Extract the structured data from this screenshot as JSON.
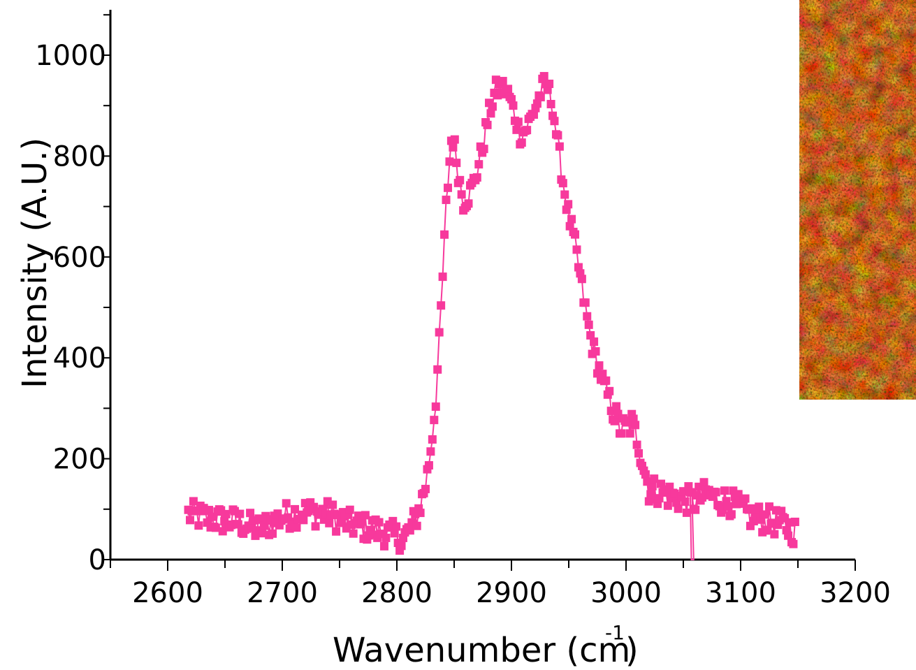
{
  "chart_data": {
    "type": "scatter",
    "title": "",
    "xlabel": "Wavenumber (cm",
    "xlabel_superscript": "-1",
    "xlabel_close": ")",
    "ylabel": "Intensity (A.U.)",
    "xlim": [
      2550,
      3200
    ],
    "ylim": [
      0,
      1090
    ],
    "x_ticks": [
      2600,
      2700,
      2800,
      2900,
      3000,
      3100,
      3200
    ],
    "x_tick_labels": [
      "2600",
      "2700",
      "2800",
      "2900",
      "3000",
      "3100",
      "3200"
    ],
    "y_ticks": [
      0,
      200,
      400,
      600,
      800,
      1000
    ],
    "y_tick_labels": [
      "0",
      "200",
      "400",
      "600",
      "800",
      "1000"
    ],
    "grid": false,
    "legend": "none",
    "series": [
      {
        "color": "#f7399c",
        "marker": "square",
        "line": true,
        "anchors": [
          [
            2618,
            90
          ],
          [
            2640,
            80
          ],
          [
            2660,
            75
          ],
          [
            2680,
            60
          ],
          [
            2700,
            85
          ],
          [
            2720,
            95
          ],
          [
            2740,
            90
          ],
          [
            2760,
            70
          ],
          [
            2780,
            60
          ],
          [
            2795,
            50
          ],
          [
            2805,
            40
          ],
          [
            2812,
            60
          ],
          [
            2818,
            90
          ],
          [
            2822,
            120
          ],
          [
            2826,
            160
          ],
          [
            2830,
            230
          ],
          [
            2834,
            320
          ],
          [
            2837,
            430
          ],
          [
            2840,
            560
          ],
          [
            2843,
            700
          ],
          [
            2846,
            790
          ],
          [
            2848,
            845
          ],
          [
            2851,
            810
          ],
          [
            2854,
            760
          ],
          [
            2858,
            710
          ],
          [
            2862,
            720
          ],
          [
            2866,
            740
          ],
          [
            2870,
            770
          ],
          [
            2875,
            820
          ],
          [
            2880,
            880
          ],
          [
            2886,
            930
          ],
          [
            2893,
            935
          ],
          [
            2898,
            920
          ],
          [
            2903,
            880
          ],
          [
            2908,
            840
          ],
          [
            2913,
            855
          ],
          [
            2918,
            880
          ],
          [
            2923,
            910
          ],
          [
            2928,
            940
          ],
          [
            2932,
            935
          ],
          [
            2936,
            900
          ],
          [
            2940,
            830
          ],
          [
            2945,
            750
          ],
          [
            2950,
            680
          ],
          [
            2955,
            630
          ],
          [
            2960,
            560
          ],
          [
            2965,
            490
          ],
          [
            2970,
            430
          ],
          [
            2975,
            390
          ],
          [
            2980,
            350
          ],
          [
            2985,
            320
          ],
          [
            2990,
            290
          ],
          [
            2995,
            260
          ],
          [
            3000,
            260
          ],
          [
            3005,
            270
          ],
          [
            3010,
            240
          ],
          [
            3015,
            190
          ],
          [
            3020,
            140
          ],
          [
            3030,
            135
          ],
          [
            3040,
            125
          ],
          [
            3050,
            120
          ],
          [
            3060,
            115
          ],
          [
            3070,
            130
          ],
          [
            3080,
            120
          ],
          [
            3090,
            115
          ],
          [
            3100,
            100
          ],
          [
            3110,
            85
          ],
          [
            3120,
            80
          ],
          [
            3130,
            75
          ],
          [
            3140,
            65
          ],
          [
            3148,
            55
          ]
        ],
        "outliers": [
          [
            3057,
            0
          ],
          [
            3059,
            0
          ]
        ]
      }
    ],
    "inset": {
      "kind": "hyperspectral-map-image",
      "colors": [
        "#1a0200",
        "#5a0a00",
        "#a82400",
        "#e05a00",
        "#ffb020"
      ]
    }
  }
}
